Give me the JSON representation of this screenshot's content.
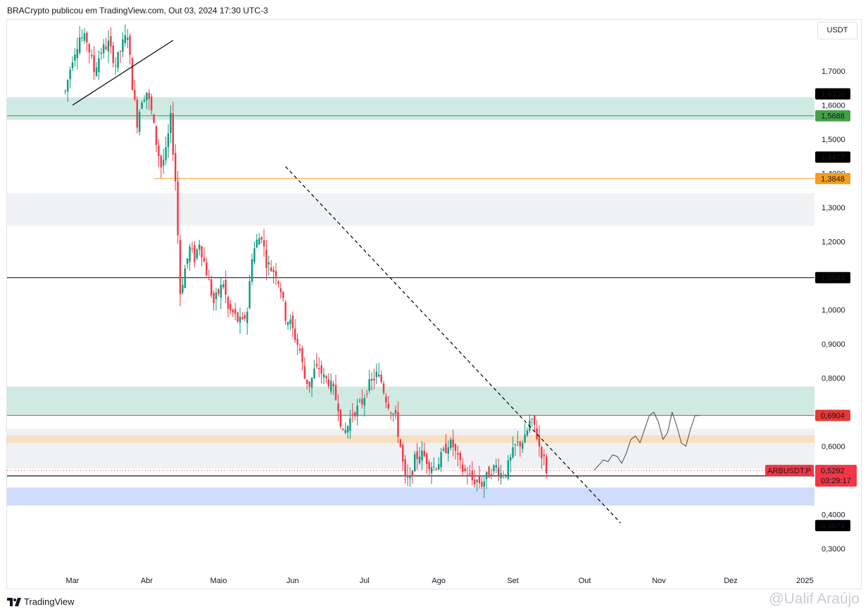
{
  "header": {
    "author_line": "BRACrypto publicou em TradingView.com, Out 03, 2024 17:30 UTC-3"
  },
  "currency_button": "USDT",
  "footer": {
    "logo_text": "TradingView",
    "watermark": "@Ualif Araújo"
  },
  "colors": {
    "up": "#089981",
    "down": "#f23645",
    "red_line": "#e53935",
    "orange_line": "#f59d1c",
    "green_line": "#43a047",
    "teal_zone": "#cfeae3",
    "grey_zone": "#f0f1f3",
    "peach_zone": "#f8dfc2",
    "blue_zone": "#d0dcfb"
  },
  "chart_data": {
    "type": "candlestick",
    "symbol_tag": "ARBUSDT.P",
    "last_price": "0,5292",
    "countdown": "03:29:17",
    "ylim": [
      0.25,
      1.77
    ],
    "y_ticks": [
      {
        "v": 1.7,
        "label": "1,7000"
      },
      {
        "v": 1.6,
        "label": "1,6000"
      },
      {
        "v": 1.5,
        "label": "1,5000"
      },
      {
        "v": 1.4,
        "label": "1,4000"
      },
      {
        "v": 1.3,
        "label": "1,3000"
      },
      {
        "v": 1.2,
        "label": "1,2000"
      },
      {
        "v": 1.0,
        "label": "1,0000"
      },
      {
        "v": 0.9,
        "label": "0,9000"
      },
      {
        "v": 0.8,
        "label": "0,8000"
      },
      {
        "v": 0.7,
        "label": "0,7000"
      },
      {
        "v": 0.6,
        "label": "0,6000"
      },
      {
        "v": 0.4,
        "label": "0,4000"
      },
      {
        "v": 0.3,
        "label": "0,3000"
      }
    ],
    "x_ticks": [
      {
        "day": 0,
        "label": "Mar"
      },
      {
        "day": 31,
        "label": "Abr"
      },
      {
        "day": 61,
        "label": "Maio"
      },
      {
        "day": 92,
        "label": "Jun"
      },
      {
        "day": 122,
        "label": "Jul"
      },
      {
        "day": 153,
        "label": "Ago"
      },
      {
        "day": 184,
        "label": "Set"
      },
      {
        "day": 214,
        "label": "Out"
      },
      {
        "day": 245,
        "label": "Nov"
      },
      {
        "day": 275,
        "label": "Dez"
      },
      {
        "day": 306,
        "label": "2025"
      }
    ],
    "levels": [
      {
        "name": "level-1-6330",
        "price": 1.633,
        "label": "1,6330",
        "label_bg": "#000000",
        "line": null
      },
      {
        "name": "level-1-5688",
        "price": 1.5688,
        "label": "1,5688",
        "label_bg": "#43a047",
        "line": "#43a047"
      },
      {
        "name": "level-1-4477",
        "price": 1.4477,
        "label": "1,4477",
        "label_bg": "#000000",
        "line": null
      },
      {
        "name": "level-1-3848",
        "price": 1.3848,
        "label": "1,3848",
        "label_bg": "#f59d1c",
        "line": "#f59d1c",
        "start_day": 34
      },
      {
        "name": "level-1-0943",
        "price": 1.0943,
        "label": "1,0943",
        "label_bg": "#000000",
        "line": "#000000"
      },
      {
        "name": "level-0-6904",
        "price": 0.6904,
        "label": "0,6904",
        "label_bg": "#e53935",
        "line": "#e53935"
      },
      {
        "name": "level-0-5003",
        "price": 0.5003,
        "label": "0,5003",
        "label_bg": "#000000",
        "line": null
      },
      {
        "name": "level-0-3674",
        "price": 0.3674,
        "label": "0,3674",
        "label_bg": "#000000",
        "line": null
      }
    ],
    "zones": [
      {
        "name": "teal-zone-upper",
        "top": 1.623,
        "bottom": 1.557,
        "color": "#cfeae3"
      },
      {
        "name": "grey-zone-upper",
        "top": 1.342,
        "bottom": 1.247,
        "color": "#f0f1f3"
      },
      {
        "name": "teal-zone-lower",
        "top": 0.775,
        "bottom": 0.691,
        "color": "#cfeae3"
      },
      {
        "name": "grey-zone-lower",
        "top": 0.652,
        "bottom": 0.535,
        "color": "#f0f1f3"
      },
      {
        "name": "peach-zone",
        "top": 0.632,
        "bottom": 0.61,
        "color": "#f8dfc2"
      },
      {
        "name": "blue-zone",
        "top": 0.479,
        "bottom": 0.426,
        "color": "#d0dcfb"
      }
    ],
    "support_line_price": 0.513,
    "trendlines": [
      {
        "name": "upper-solid-trendline",
        "style": "solid",
        "from": {
          "day": 0,
          "price": 1.6
        },
        "to": {
          "day": 42,
          "price": 1.79
        }
      },
      {
        "name": "descending-dashed-trendline",
        "style": "dashed",
        "from": {
          "day": 89,
          "price": 1.42
        },
        "to": {
          "day": 229,
          "price": 0.375
        }
      }
    ],
    "projection": {
      "from_day": 218,
      "to_day": 262,
      "points": [
        0.53,
        0.545,
        0.56,
        0.555,
        0.575,
        0.57,
        0.55,
        0.58,
        0.62,
        0.63,
        0.61,
        0.65,
        0.69,
        0.7,
        0.67,
        0.62,
        0.64,
        0.7,
        0.66,
        0.61,
        0.6,
        0.65,
        0.69,
        0.69
      ]
    },
    "last_price_line": 0.5292,
    "path": [
      {
        "day": -3,
        "price": 1.64
      },
      {
        "day": 0,
        "price": 1.74
      },
      {
        "day": 3,
        "price": 1.8
      },
      {
        "day": 6,
        "price": 1.79
      },
      {
        "day": 9,
        "price": 1.7
      },
      {
        "day": 12,
        "price": 1.76
      },
      {
        "day": 15,
        "price": 1.78
      },
      {
        "day": 18,
        "price": 1.72
      },
      {
        "day": 21,
        "price": 1.78
      },
      {
        "day": 23,
        "price": 1.81
      },
      {
        "day": 25,
        "price": 1.66
      },
      {
        "day": 27,
        "price": 1.55
      },
      {
        "day": 29,
        "price": 1.62
      },
      {
        "day": 31,
        "price": 1.64
      },
      {
        "day": 33,
        "price": 1.58
      },
      {
        "day": 35,
        "price": 1.49
      },
      {
        "day": 37,
        "price": 1.42
      },
      {
        "day": 39,
        "price": 1.46
      },
      {
        "day": 41,
        "price": 1.56
      },
      {
        "day": 43,
        "price": 1.38
      },
      {
        "day": 44,
        "price": 1.22
      },
      {
        "day": 45,
        "price": 1.05
      },
      {
        "day": 47,
        "price": 1.12
      },
      {
        "day": 49,
        "price": 1.18
      },
      {
        "day": 51,
        "price": 1.15
      },
      {
        "day": 53,
        "price": 1.2
      },
      {
        "day": 55,
        "price": 1.14
      },
      {
        "day": 57,
        "price": 1.08
      },
      {
        "day": 59,
        "price": 1.02
      },
      {
        "day": 61,
        "price": 1.05
      },
      {
        "day": 63,
        "price": 1.08
      },
      {
        "day": 65,
        "price": 1.0
      },
      {
        "day": 67,
        "price": 0.99
      },
      {
        "day": 69,
        "price": 0.97
      },
      {
        "day": 71,
        "price": 0.96
      },
      {
        "day": 73,
        "price": 1.0
      },
      {
        "day": 75,
        "price": 1.16
      },
      {
        "day": 77,
        "price": 1.2
      },
      {
        "day": 79,
        "price": 1.22
      },
      {
        "day": 81,
        "price": 1.14
      },
      {
        "day": 83,
        "price": 1.12
      },
      {
        "day": 85,
        "price": 1.11
      },
      {
        "day": 87,
        "price": 1.06
      },
      {
        "day": 89,
        "price": 0.98
      },
      {
        "day": 91,
        "price": 0.96
      },
      {
        "day": 93,
        "price": 0.92
      },
      {
        "day": 95,
        "price": 0.88
      },
      {
        "day": 97,
        "price": 0.8
      },
      {
        "day": 99,
        "price": 0.78
      },
      {
        "day": 101,
        "price": 0.82
      },
      {
        "day": 103,
        "price": 0.83
      },
      {
        "day": 105,
        "price": 0.8
      },
      {
        "day": 107,
        "price": 0.79
      },
      {
        "day": 109,
        "price": 0.76
      },
      {
        "day": 111,
        "price": 0.72
      },
      {
        "day": 113,
        "price": 0.63
      },
      {
        "day": 115,
        "price": 0.66
      },
      {
        "day": 117,
        "price": 0.7
      },
      {
        "day": 119,
        "price": 0.71
      },
      {
        "day": 121,
        "price": 0.73
      },
      {
        "day": 123,
        "price": 0.77
      },
      {
        "day": 125,
        "price": 0.79
      },
      {
        "day": 127,
        "price": 0.81
      },
      {
        "day": 129,
        "price": 0.79
      },
      {
        "day": 131,
        "price": 0.74
      },
      {
        "day": 133,
        "price": 0.71
      },
      {
        "day": 135,
        "price": 0.68
      },
      {
        "day": 137,
        "price": 0.6
      },
      {
        "day": 139,
        "price": 0.5
      },
      {
        "day": 141,
        "price": 0.5
      },
      {
        "day": 143,
        "price": 0.56
      },
      {
        "day": 145,
        "price": 0.58
      },
      {
        "day": 147,
        "price": 0.57
      },
      {
        "day": 149,
        "price": 0.55
      },
      {
        "day": 151,
        "price": 0.54
      },
      {
        "day": 153,
        "price": 0.555
      },
      {
        "day": 155,
        "price": 0.58
      },
      {
        "day": 157,
        "price": 0.61
      },
      {
        "day": 159,
        "price": 0.6
      },
      {
        "day": 161,
        "price": 0.56
      },
      {
        "day": 163,
        "price": 0.53
      },
      {
        "day": 165,
        "price": 0.52
      },
      {
        "day": 167,
        "price": 0.5
      },
      {
        "day": 169,
        "price": 0.5
      },
      {
        "day": 171,
        "price": 0.49
      },
      {
        "day": 173,
        "price": 0.51
      },
      {
        "day": 175,
        "price": 0.53
      },
      {
        "day": 177,
        "price": 0.54
      },
      {
        "day": 179,
        "price": 0.52
      },
      {
        "day": 181,
        "price": 0.525
      },
      {
        "day": 183,
        "price": 0.56
      },
      {
        "day": 185,
        "price": 0.6
      },
      {
        "day": 187,
        "price": 0.61
      },
      {
        "day": 189,
        "price": 0.62
      },
      {
        "day": 191,
        "price": 0.67
      },
      {
        "day": 193,
        "price": 0.66
      },
      {
        "day": 195,
        "price": 0.6
      },
      {
        "day": 197,
        "price": 0.56
      },
      {
        "day": 198,
        "price": 0.53
      }
    ]
  }
}
